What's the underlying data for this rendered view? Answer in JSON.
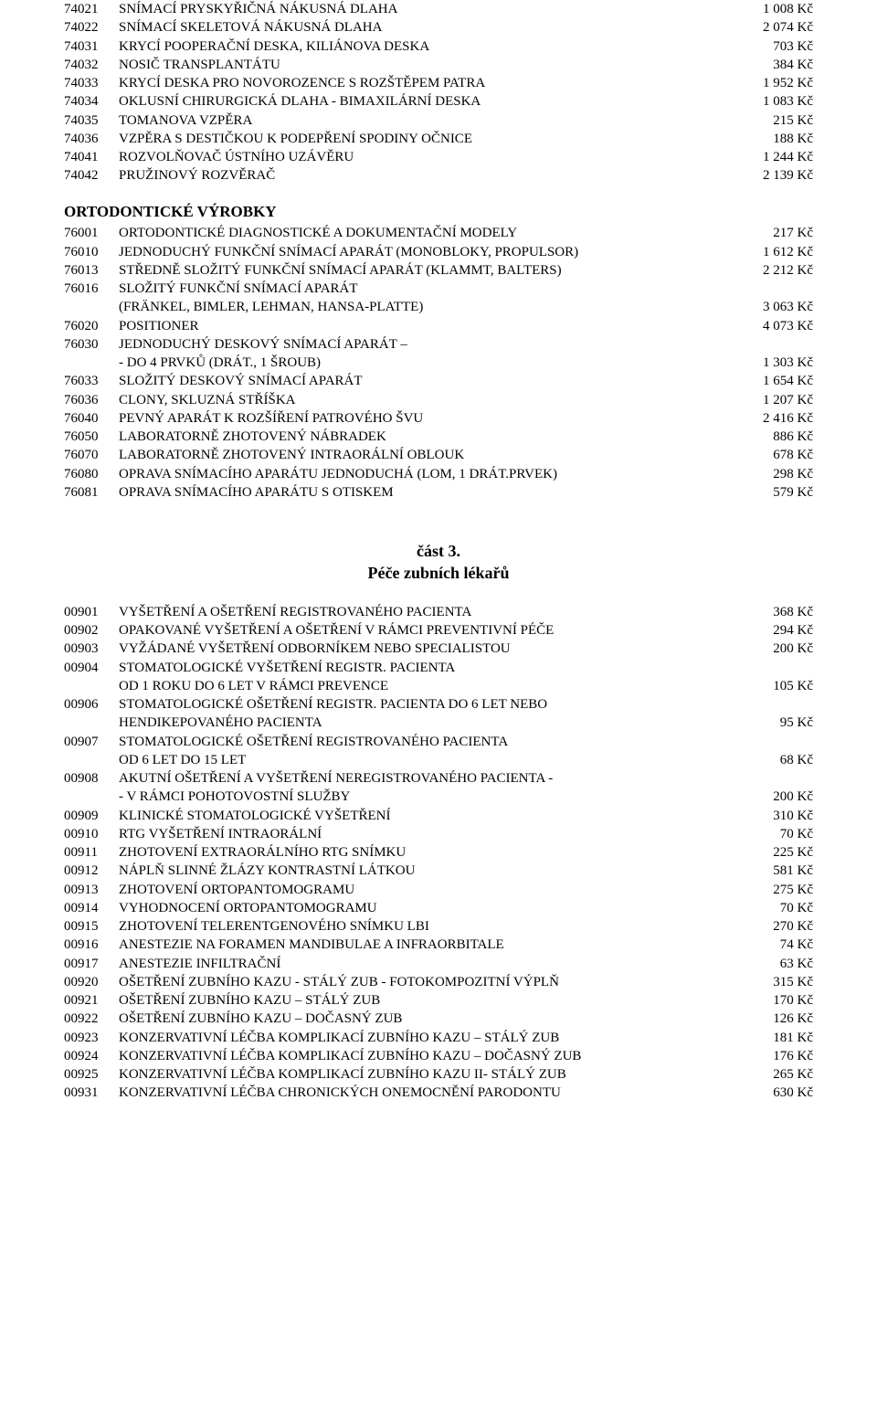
{
  "section1": [
    {
      "code": "74021",
      "desc": "SNÍMACÍ PRYSKYŘIČNÁ NÁKUSNÁ DLAHA",
      "price": "1 008 Kč"
    },
    {
      "code": "74022",
      "desc": "SNÍMACÍ SKELETOVÁ NÁKUSNÁ DLAHA",
      "price": "2 074 Kč"
    },
    {
      "code": "74031",
      "desc": "KRYCÍ POOPERAČNÍ DESKA, KILIÁNOVA DESKA",
      "price": "703 Kč"
    },
    {
      "code": "74032",
      "desc": "NOSIČ TRANSPLANTÁTU",
      "price": "384 Kč"
    },
    {
      "code": "74033",
      "desc": "KRYCÍ DESKA PRO NOVOROZENCE S ROZŠTĚPEM PATRA",
      "price": "1 952 Kč"
    },
    {
      "code": "74034",
      "desc": "OKLUSNÍ CHIRURGICKÁ DLAHA - BIMAXILÁRNÍ DESKA",
      "price": "1 083 Kč"
    },
    {
      "code": "74035",
      "desc": "TOMANOVA VZPĚRA",
      "price": "215 Kč"
    },
    {
      "code": "74036",
      "desc": "VZPĚRA S DESTIČKOU K PODEPŘENÍ SPODINY OČNICE",
      "price": "188 Kč"
    },
    {
      "code": "74041",
      "desc": "ROZVOLŇOVAČ ÚSTNÍHO UZÁVĚRU",
      "price": "1 244 Kč"
    },
    {
      "code": "74042",
      "desc": "PRUŽINOVÝ ROZVĚRAČ",
      "price": "2 139 Kč"
    }
  ],
  "ortho_title": "ORTODONTICKÉ VÝROBKY",
  "section2": [
    {
      "code": "76001",
      "desc": "ORTODONTICKÉ DIAGNOSTICKÉ A DOKUMENTAČNÍ MODELY",
      "price": "217 Kč"
    },
    {
      "code": "76010",
      "desc": "JEDNODUCHÝ FUNKČNÍ SNÍMACÍ APARÁT (MONOBLOKY, PROPULSOR)",
      "price": "1 612 Kč"
    },
    {
      "code": "76013",
      "desc": "STŘEDNĚ SLOŽITÝ FUNKČNÍ SNÍMACÍ APARÁT (KLAMMT, BALTERS)",
      "price": "2 212 Kč"
    },
    {
      "code": "76016",
      "desc": "SLOŽITÝ FUNKČNÍ SNÍMACÍ APARÁT",
      "price": ""
    },
    {
      "code": "",
      "desc": "(FRÄNKEL, BIMLER, LEHMAN, HANSA-PLATTE)",
      "price": "3 063 Kč"
    },
    {
      "code": "76020",
      "desc": "POSITIONER",
      "price": "4 073 Kč"
    },
    {
      "code": "76030",
      "desc": "JEDNODUCHÝ DESKOVÝ SNÍMACÍ APARÁT –",
      "price": ""
    },
    {
      "code": "",
      "desc": "- DO 4 PRVKŮ (DRÁT., 1 ŠROUB)",
      "price": "1 303 Kč"
    },
    {
      "code": "76033",
      "desc": "SLOŽITÝ DESKOVÝ SNÍMACÍ APARÁT",
      "price": "1 654 Kč"
    },
    {
      "code": "76036",
      "desc": "CLONY, SKLUZNÁ STŘÍŠKA",
      "price": "1 207 Kč"
    },
    {
      "code": "76040",
      "desc": "PEVNÝ APARÁT K ROZŠÍŘENÍ PATROVÉHO ŠVU",
      "price": "2 416 Kč"
    },
    {
      "code": "76050",
      "desc": "LABORATORNĚ ZHOTOVENÝ NÁBRADEK",
      "price": "886 Kč"
    },
    {
      "code": "76070",
      "desc": "LABORATORNĚ ZHOTOVENÝ INTRAORÁLNÍ OBLOUK",
      "price": "678 Kč"
    },
    {
      "code": "76080",
      "desc": "OPRAVA SNÍMACÍHO APARÁTU JEDNODUCHÁ (LOM, 1 DRÁT.PRVEK)",
      "price": "298 Kč"
    },
    {
      "code": "76081",
      "desc": "OPRAVA SNÍMACÍHO APARÁTU S OTISKEM",
      "price": "579 Kč"
    }
  ],
  "part3_title": "část 3.",
  "part3_sub": "Péče zubních lékařů",
  "section3": [
    {
      "code": "00901",
      "desc": "VYŠETŘENÍ A OŠETŘENÍ REGISTROVANÉHO PACIENTA",
      "price": "368 Kč"
    },
    {
      "code": "00902",
      "desc": "OPAKOVANÉ VYŠETŘENÍ A OŠETŘENÍ V RÁMCI PREVENTIVNÍ PÉČE",
      "price": "294 Kč"
    },
    {
      "code": "00903",
      "desc": "VYŽÁDANÉ VYŠETŘENÍ ODBORNÍKEM NEBO SPECIALISTOU",
      "price": "200 Kč"
    },
    {
      "code": "00904",
      "desc": "STOMATOLOGICKÉ VYŠETŘENÍ REGISTR. PACIENTA",
      "price": ""
    },
    {
      "code": "",
      "desc": "OD 1 ROKU DO 6 LET V RÁMCI PREVENCE",
      "price": "105 Kč"
    },
    {
      "code": "00906",
      "desc": "STOMATOLOGICKÉ OŠETŘENÍ REGISTR. PACIENTA DO 6 LET NEBO",
      "price": ""
    },
    {
      "code": "",
      "desc": "HENDIKEPOVANÉHO PACIENTA",
      "price": "95 Kč"
    },
    {
      "code": "00907",
      "desc": "STOMATOLOGICKÉ OŠETŘENÍ REGISTROVANÉHO PACIENTA",
      "price": ""
    },
    {
      "code": "",
      "desc": "OD 6 LET DO 15 LET",
      "price": "68 Kč"
    },
    {
      "code": "00908",
      "desc": "AKUTNÍ OŠETŘENÍ A VYŠETŘENÍ NEREGISTROVANÉHO PACIENTA -",
      "price": ""
    },
    {
      "code": "",
      "desc": "- V RÁMCI POHOTOVOSTNÍ SLUŽBY",
      "price": "200 Kč"
    },
    {
      "code": "00909",
      "desc": "KLINICKÉ STOMATOLOGICKÉ VYŠETŘENÍ",
      "price": "310 Kč"
    },
    {
      "code": "00910",
      "desc": "RTG VYŠETŘENÍ INTRAORÁLNÍ",
      "price": "70 Kč"
    },
    {
      "code": "00911",
      "desc": "ZHOTOVENÍ EXTRAORÁLNÍHO RTG SNÍMKU",
      "price": "225 Kč"
    },
    {
      "code": "00912",
      "desc": "NÁPLŇ SLINNÉ ŽLÁZY KONTRASTNÍ LÁTKOU",
      "price": "581 Kč"
    },
    {
      "code": "00913",
      "desc": "ZHOTOVENÍ ORTOPANTOMOGRAMU",
      "price": "275 Kč"
    },
    {
      "code": "00914",
      "desc": "VYHODNOCENÍ ORTOPANTOMOGRAMU",
      "price": "70 Kč"
    },
    {
      "code": "00915",
      "desc": "ZHOTOVENÍ TELERENTGENOVÉHO SNÍMKU LBI",
      "price": "270 Kč"
    },
    {
      "code": "00916",
      "desc": "ANESTEZIE NA FORAMEN MANDIBULAE A INFRAORBITALE",
      "price": "74 Kč"
    },
    {
      "code": "00917",
      "desc": "ANESTEZIE INFILTRAČNÍ",
      "price": "63 Kč"
    },
    {
      "code": "00920",
      "desc": "OŠETŘENÍ ZUBNÍHO KAZU - STÁLÝ ZUB - FOTOKOMPOZITNÍ VÝPLŇ",
      "price": "315 Kč"
    },
    {
      "code": "00921",
      "desc": "OŠETŘENÍ ZUBNÍHO KAZU – STÁLÝ ZUB",
      "price": "170 Kč"
    },
    {
      "code": "00922",
      "desc": "OŠETŘENÍ ZUBNÍHO KAZU – DOČASNÝ ZUB",
      "price": "126 Kč"
    },
    {
      "code": "00923",
      "desc": "KONZERVATIVNÍ LÉČBA KOMPLIKACÍ ZUBNÍHO KAZU – STÁLÝ ZUB",
      "price": "181 Kč"
    },
    {
      "code": "00924",
      "desc": "KONZERVATIVNÍ LÉČBA KOMPLIKACÍ ZUBNÍHO KAZU – DOČASNÝ ZUB",
      "price": "176 Kč"
    },
    {
      "code": "00925",
      "desc": "KONZERVATIVNÍ LÉČBA KOMPLIKACÍ ZUBNÍHO KAZU II- STÁLÝ ZUB",
      "price": "265 Kč"
    },
    {
      "code": "00931",
      "desc": "KONZERVATIVNÍ LÉČBA CHRONICKÝCH ONEMOCNĚNÍ PARODONTU",
      "price": "630 Kč"
    }
  ]
}
